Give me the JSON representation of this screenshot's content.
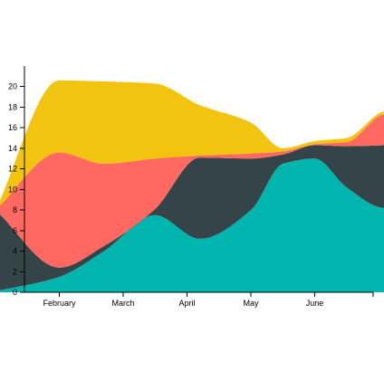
{
  "chart_data": {
    "type": "area",
    "stacked": true,
    "interpolation": "smooth",
    "x": [
      1.0,
      2.0,
      2.7,
      3.5,
      4.2,
      5.0,
      5.5,
      6.0,
      6.5,
      7.1,
      7.6,
      8.0,
      8.5,
      9.0,
      9.3
    ],
    "x_ticks": [
      {
        "value": 2,
        "label": "February"
      },
      {
        "value": 3,
        "label": "March"
      },
      {
        "value": 4,
        "label": "April"
      },
      {
        "value": 5,
        "label": "May"
      },
      {
        "value": 6,
        "label": "June"
      }
    ],
    "ylim": [
      0,
      22
    ],
    "y_ticks": [
      0,
      2,
      4,
      6,
      8,
      10,
      12,
      14,
      16,
      18,
      20
    ],
    "series": [
      {
        "color": "#00b5ad",
        "values": [
          0.1,
          1.5,
          4.0,
          7.5,
          5.2,
          8.0,
          12.5,
          13.0,
          10.2,
          8.2,
          9.6,
          10.2,
          11.8,
          11.8,
          11.2
        ]
      },
      {
        "color": "#344449",
        "values": [
          7.9,
          0.9,
          0.5,
          0.6,
          7.9,
          5.0,
          0.9,
          1.3,
          4.0,
          6.1,
          5.0,
          3.0,
          3.0,
          4.5,
          5.0
        ]
      },
      {
        "color": "#ff6961",
        "values": [
          0.0,
          11.2,
          8.0,
          4.9,
          0.2,
          0.5,
          0.3,
          0.1,
          0.4,
          3.0,
          2.4,
          1.7,
          0.3,
          0.1,
          0.0
        ]
      },
      {
        "color": "#f2c40f",
        "values": [
          0.0,
          7.0,
          8.0,
          7.3,
          4.9,
          3.0,
          0.3,
          0.3,
          0.4,
          0.3,
          0.8,
          1.9,
          1.6,
          0.0,
          0.0
        ]
      }
    ]
  }
}
